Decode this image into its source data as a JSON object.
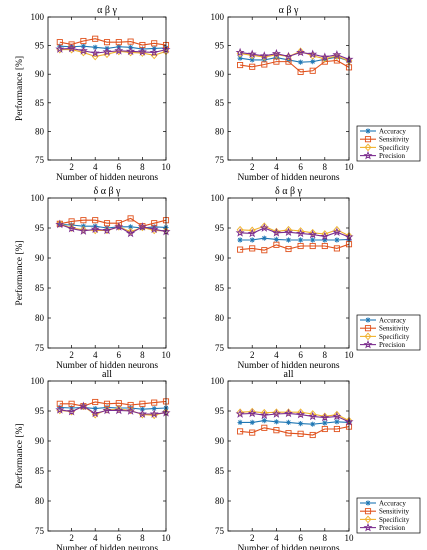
{
  "chart_data": [
    {
      "type": "line",
      "title": "α β γ",
      "xlabel": "Number of hidden neurons",
      "ylabel": "Performance [%]",
      "xlim": [
        0,
        10
      ],
      "ylim": [
        75,
        100
      ],
      "xticks": [
        "2",
        "4",
        "6",
        "8",
        "10"
      ],
      "yticks": [
        "75",
        "80",
        "85",
        "90",
        "95",
        "100"
      ],
      "x": [
        1,
        2,
        3,
        4,
        5,
        6,
        7,
        8,
        9,
        10
      ],
      "legend": false,
      "series": [
        {
          "name": "Accuracy",
          "values": [
            94.9,
            94.8,
            94.9,
            94.7,
            94.5,
            94.8,
            94.7,
            94.4,
            94.5,
            94.6
          ]
        },
        {
          "name": "Sensitivity",
          "values": [
            95.6,
            95.2,
            95.8,
            96.2,
            95.6,
            95.6,
            95.7,
            95.1,
            95.4,
            95.1
          ]
        },
        {
          "name": "Specificity",
          "values": [
            94.3,
            94.3,
            93.8,
            93.1,
            93.5,
            94.0,
            93.8,
            93.7,
            93.3,
            94.0
          ]
        },
        {
          "name": "Precision",
          "values": [
            94.4,
            94.5,
            94.1,
            93.7,
            93.9,
            94.1,
            94.0,
            93.9,
            93.8,
            94.3
          ]
        }
      ]
    },
    {
      "type": "line",
      "title": "α β γ",
      "xlabel": "Number of hidden neurons",
      "ylabel": "",
      "xlim": [
        0,
        10
      ],
      "ylim": [
        75,
        100
      ],
      "xticks": [
        "2",
        "4",
        "6",
        "8",
        "10"
      ],
      "yticks": [
        "75",
        "80",
        "85",
        "90",
        "95",
        "100"
      ],
      "x": [
        1,
        2,
        3,
        4,
        5,
        6,
        7,
        8,
        9,
        10
      ],
      "legend": true,
      "series": [
        {
          "name": "Accuracy",
          "values": [
            92.8,
            92.5,
            92.5,
            92.9,
            92.5,
            92.1,
            92.2,
            92.6,
            93.0,
            92.3
          ]
        },
        {
          "name": "Sensitivity",
          "values": [
            91.6,
            91.3,
            91.7,
            92.2,
            92.2,
            90.4,
            90.6,
            92.2,
            92.4,
            91.2
          ]
        },
        {
          "name": "Specificity",
          "values": [
            93.6,
            93.3,
            93.0,
            93.4,
            93.1,
            94.0,
            93.2,
            92.7,
            93.2,
            92.3
          ]
        },
        {
          "name": "Precision",
          "values": [
            93.8,
            93.5,
            93.2,
            93.6,
            93.1,
            93.8,
            93.5,
            93.0,
            93.4,
            92.6
          ]
        }
      ]
    },
    {
      "type": "line",
      "title": "δ α β γ",
      "xlabel": "Number of hidden neurons",
      "ylabel": "Performance [%]",
      "xlim": [
        0,
        10
      ],
      "ylim": [
        75,
        100
      ],
      "xticks": [
        "2",
        "4",
        "6",
        "8",
        "10"
      ],
      "yticks": [
        "75",
        "80",
        "85",
        "90",
        "95",
        "100"
      ],
      "x": [
        1,
        2,
        3,
        4,
        5,
        6,
        7,
        8,
        9,
        10
      ],
      "legend": false,
      "series": [
        {
          "name": "Accuracy",
          "values": [
            95.6,
            95.5,
            95.3,
            95.3,
            95.0,
            95.2,
            95.2,
            95.0,
            95.2,
            95.1
          ]
        },
        {
          "name": "Sensitivity",
          "values": [
            95.7,
            96.1,
            96.3,
            96.3,
            95.8,
            95.8,
            96.6,
            95.3,
            95.8,
            96.3
          ]
        },
        {
          "name": "Specificity",
          "values": [
            95.7,
            95.0,
            94.7,
            94.6,
            94.6,
            95.2,
            94.4,
            95.1,
            94.6,
            94.5
          ]
        },
        {
          "name": "Precision",
          "values": [
            95.6,
            94.9,
            94.5,
            94.8,
            94.6,
            95.2,
            94.1,
            95.2,
            94.8,
            94.4
          ]
        }
      ]
    },
    {
      "type": "line",
      "title": "δ α β γ",
      "xlabel": "Number of hidden neurons",
      "ylabel": "",
      "xlim": [
        0,
        10
      ],
      "ylim": [
        75,
        100
      ],
      "xticks": [
        "2",
        "4",
        "6",
        "8",
        "10"
      ],
      "yticks": [
        "75",
        "80",
        "85",
        "90",
        "95",
        "100"
      ],
      "x": [
        1,
        2,
        3,
        4,
        5,
        6,
        7,
        8,
        9,
        10
      ],
      "legend": true,
      "series": [
        {
          "name": "Accuracy",
          "values": [
            93.0,
            93.0,
            93.3,
            93.1,
            93.0,
            93.0,
            93.0,
            93.0,
            93.0,
            93.1
          ]
        },
        {
          "name": "Sensitivity",
          "values": [
            91.4,
            91.6,
            91.3,
            92.2,
            91.5,
            92.0,
            92.0,
            92.0,
            91.6,
            92.3
          ]
        },
        {
          "name": "Specificity",
          "values": [
            94.7,
            94.6,
            95.3,
            94.4,
            94.7,
            94.5,
            94.2,
            94.0,
            94.7,
            93.7
          ]
        },
        {
          "name": "Precision",
          "values": [
            94.2,
            94.1,
            95.0,
            94.2,
            94.3,
            94.1,
            93.9,
            93.6,
            94.3,
            93.5
          ]
        }
      ]
    },
    {
      "type": "line",
      "title": "all",
      "xlabel": "Number of hidden neurons",
      "ylabel": "Performance [%]",
      "xlim": [
        0,
        10
      ],
      "ylim": [
        75,
        100
      ],
      "xticks": [
        "2",
        "4",
        "6",
        "8",
        "10"
      ],
      "yticks": [
        "75",
        "80",
        "85",
        "90",
        "95",
        "100"
      ],
      "x": [
        1,
        2,
        3,
        4,
        5,
        6,
        7,
        8,
        9,
        10
      ],
      "legend": false,
      "series": [
        {
          "name": "Accuracy",
          "values": [
            95.6,
            95.5,
            95.6,
            95.4,
            95.6,
            95.5,
            95.5,
            95.3,
            95.4,
            95.5
          ]
        },
        {
          "name": "Sensitivity",
          "values": [
            96.2,
            96.2,
            95.8,
            96.5,
            96.2,
            96.3,
            96.0,
            96.2,
            96.4,
            96.6
          ]
        },
        {
          "name": "Specificity",
          "values": [
            95.1,
            94.9,
            95.8,
            94.4,
            95.2,
            95.3,
            95.1,
            94.4,
            94.3,
            94.8
          ]
        },
        {
          "name": "Precision",
          "values": [
            95.2,
            94.9,
            95.8,
            94.6,
            95.1,
            95.1,
            95.0,
            94.5,
            94.5,
            94.7
          ]
        }
      ]
    },
    {
      "type": "line",
      "title": "all",
      "xlabel": "Number of hidden neurons",
      "ylabel": "",
      "xlim": [
        0,
        10
      ],
      "ylim": [
        75,
        100
      ],
      "xticks": [
        "2",
        "4",
        "6",
        "8",
        "10"
      ],
      "yticks": [
        "75",
        "80",
        "85",
        "90",
        "95",
        "100"
      ],
      "x": [
        1,
        2,
        3,
        4,
        5,
        6,
        7,
        8,
        9,
        10
      ],
      "legend": true,
      "series": [
        {
          "name": "Accuracy",
          "values": [
            93.1,
            93.1,
            93.4,
            93.2,
            93.1,
            92.9,
            92.8,
            93.0,
            93.2,
            93.1
          ]
        },
        {
          "name": "Sensitivity",
          "values": [
            91.6,
            91.4,
            92.2,
            91.8,
            91.3,
            91.2,
            91.0,
            92.0,
            92.0,
            92.4
          ]
        },
        {
          "name": "Specificity",
          "values": [
            94.8,
            94.9,
            94.7,
            94.8,
            94.8,
            94.8,
            94.5,
            94.1,
            94.4,
            93.4
          ]
        },
        {
          "name": "Precision",
          "values": [
            94.5,
            94.6,
            94.3,
            94.5,
            94.6,
            94.4,
            94.1,
            93.9,
            94.1,
            93.2
          ]
        }
      ]
    }
  ],
  "styles": {
    "Accuracy": {
      "color": "#1f77b4",
      "marker": "asterisk"
    },
    "Sensitivity": {
      "color": "#e0501b",
      "marker": "square"
    },
    "Specificity": {
      "color": "#f0b12b",
      "marker": "diamond"
    },
    "Precision": {
      "color": "#7b2d8e",
      "marker": "star"
    }
  }
}
